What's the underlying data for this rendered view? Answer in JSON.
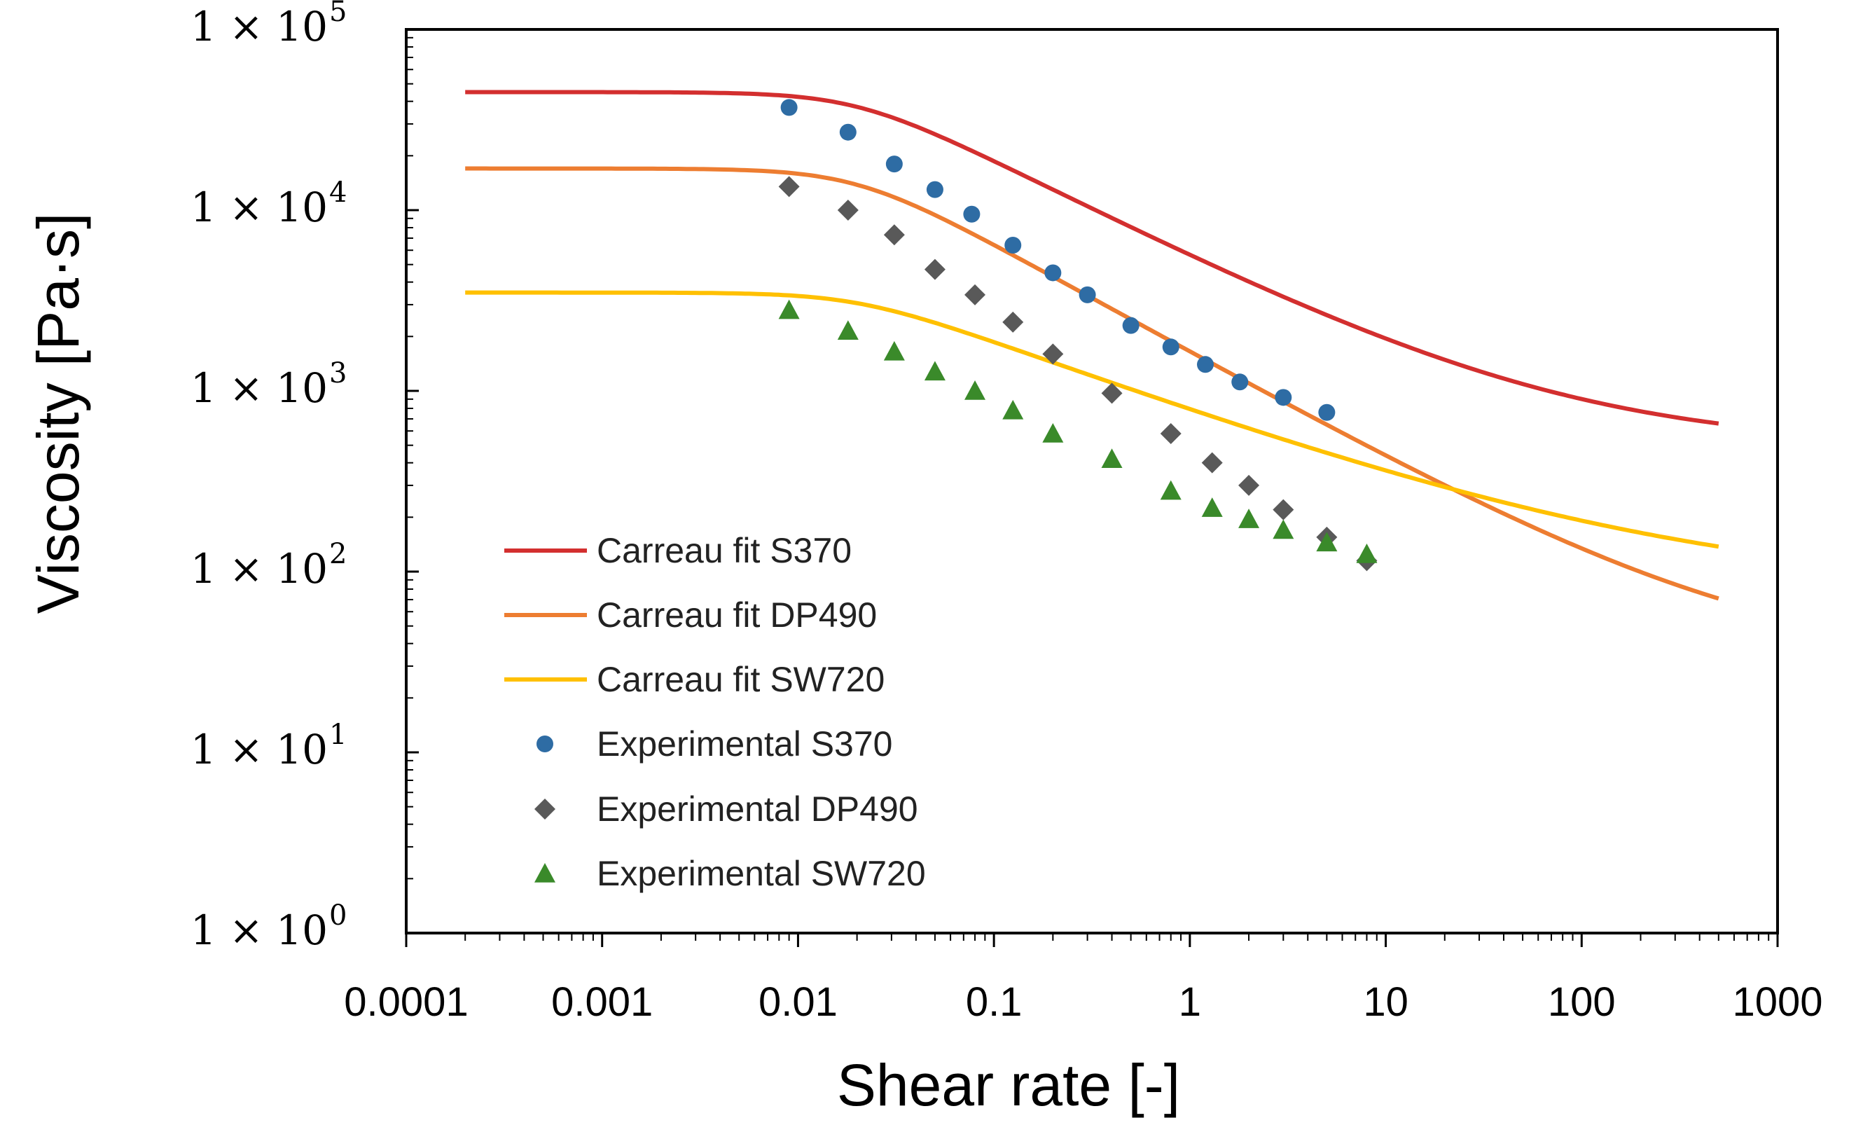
{
  "chart_data": {
    "type": "line",
    "title": "",
    "xlabel": "Shear rate [-]",
    "ylabel": "Viscosity [Pa·s]",
    "xscale": "log",
    "yscale": "log",
    "xlim": [
      0.0001,
      1000
    ],
    "ylim": [
      1,
      100000
    ],
    "grid": false,
    "legend_position": "bottom-left",
    "x_tick_labels": [
      "0.0001",
      "0.001",
      "0.01",
      "0.1",
      "1",
      "10",
      "100",
      "1000"
    ],
    "y_tick_labels": [
      {
        "base": "1 × 10",
        "exp": "0"
      },
      {
        "base": "1 × 10",
        "exp": "1"
      },
      {
        "base": "1 × 10",
        "exp": "2"
      },
      {
        "base": "1 × 10",
        "exp": "3"
      },
      {
        "base": "1 × 10",
        "exp": "4"
      },
      {
        "base": "1 × 10",
        "exp": "5"
      }
    ],
    "fits": [
      {
        "name": "Carreau fit S370",
        "color": "#d32f2f",
        "eta0": 45000,
        "etainf": 490,
        "lambda": 50,
        "n": 0.45,
        "x_range": [
          0.0002,
          500
        ]
      },
      {
        "name": "Carreau fit DP490",
        "color": "#ed7d31",
        "eta0": 17000,
        "etainf": 32,
        "lambda": 50,
        "n": 0.4,
        "x_range": [
          0.0002,
          500
        ]
      },
      {
        "name": "Carreau fit SW720",
        "color": "#ffc000",
        "eta0": 3500,
        "etainf": 78,
        "lambda": 50,
        "n": 0.6,
        "x_range": [
          0.0002,
          500
        ]
      }
    ],
    "series": [
      {
        "name": "Experimental S370",
        "marker": "circle",
        "color": "#2e6ca4",
        "x": [
          0.009,
          0.018,
          0.031,
          0.05,
          0.077,
          0.125,
          0.2,
          0.3,
          0.5,
          0.8,
          1.2,
          1.8,
          3.0,
          5.0
        ],
        "y": [
          37000,
          27000,
          18000,
          13000,
          9500,
          6400,
          4500,
          3400,
          2300,
          1750,
          1400,
          1120,
          920,
          760
        ]
      },
      {
        "name": "Experimental DP490",
        "marker": "diamond",
        "color": "#595959",
        "x": [
          0.009,
          0.018,
          0.031,
          0.05,
          0.08,
          0.125,
          0.2,
          0.4,
          0.8,
          1.3,
          2.0,
          3.0,
          5.0,
          8.0
        ],
        "y": [
          13500,
          10000,
          7300,
          4700,
          3400,
          2400,
          1600,
          970,
          580,
          400,
          300,
          220,
          155,
          115
        ]
      },
      {
        "name": "Experimental SW720",
        "marker": "triangle",
        "color": "#3a8a2a",
        "x": [
          0.009,
          0.018,
          0.031,
          0.05,
          0.08,
          0.125,
          0.2,
          0.4,
          0.8,
          1.3,
          2.0,
          3.0,
          5.0,
          8.0
        ],
        "y": [
          2800,
          2150,
          1650,
          1280,
          1000,
          780,
          580,
          420,
          280,
          225,
          195,
          170,
          145,
          125
        ]
      }
    ]
  }
}
